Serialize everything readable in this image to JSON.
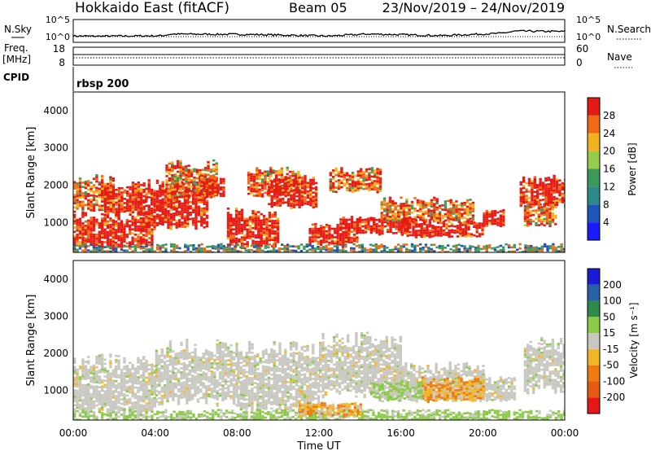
{
  "header": {
    "station": "Hokkaido East (fitACF)",
    "beam": "Beam 05",
    "date_range": "23/Nov/2019 – 24/Nov/2019"
  },
  "chart_data": [
    {
      "type": "line",
      "panel": "N.Sky / N.Search",
      "left_label": "N.Sky",
      "right_label": "N.Search",
      "left_ticks": [
        "10^5",
        "10^0"
      ],
      "right_ticks": [
        "10^5",
        "10^0"
      ],
      "log_scale": true,
      "series": [
        {
          "name": "N.Sky",
          "style": "solid"
        },
        {
          "name": "N.Search",
          "style": "dotted"
        }
      ]
    },
    {
      "type": "line",
      "panel": "Freq. / Nave",
      "left_label": "Freq.",
      "left_unit": "[MHz]",
      "right_label": "Nave",
      "left_ticks": [
        "18",
        "8"
      ],
      "right_ticks": [
        "60",
        "0"
      ],
      "series": [
        {
          "name": "Freq.",
          "style": "solid"
        },
        {
          "name": "Nave",
          "style": "dotted"
        }
      ]
    },
    {
      "type": "line",
      "panel": "CPID",
      "left_label": "CPID",
      "value_label": "rbsp 200"
    },
    {
      "type": "heatmap",
      "panel": "power",
      "ylabel": "Slant Range [km]",
      "yticks": [
        1000,
        2000,
        3000,
        4000
      ],
      "ylim": [
        200,
        4500
      ],
      "colorbar_label": "Power [dB]",
      "colorbar_ticks": [
        4,
        8,
        12,
        16,
        20,
        24,
        28
      ],
      "colorbar_range": [
        0,
        32
      ]
    },
    {
      "type": "heatmap",
      "panel": "velocity",
      "ylabel": "Slant Range [km]",
      "yticks": [
        1000,
        2000,
        3000,
        4000
      ],
      "ylim": [
        200,
        4500
      ],
      "colorbar_label": "Velocity [m s⁻¹]",
      "colorbar_ticks": [
        200,
        100,
        50,
        15,
        -15,
        -50,
        -100,
        -200
      ]
    }
  ],
  "time_axis": {
    "xlabel": "Time UT",
    "ticks": [
      "00:00",
      "04:00",
      "08:00",
      "12:00",
      "16:00",
      "20:00",
      "00:00"
    ]
  }
}
